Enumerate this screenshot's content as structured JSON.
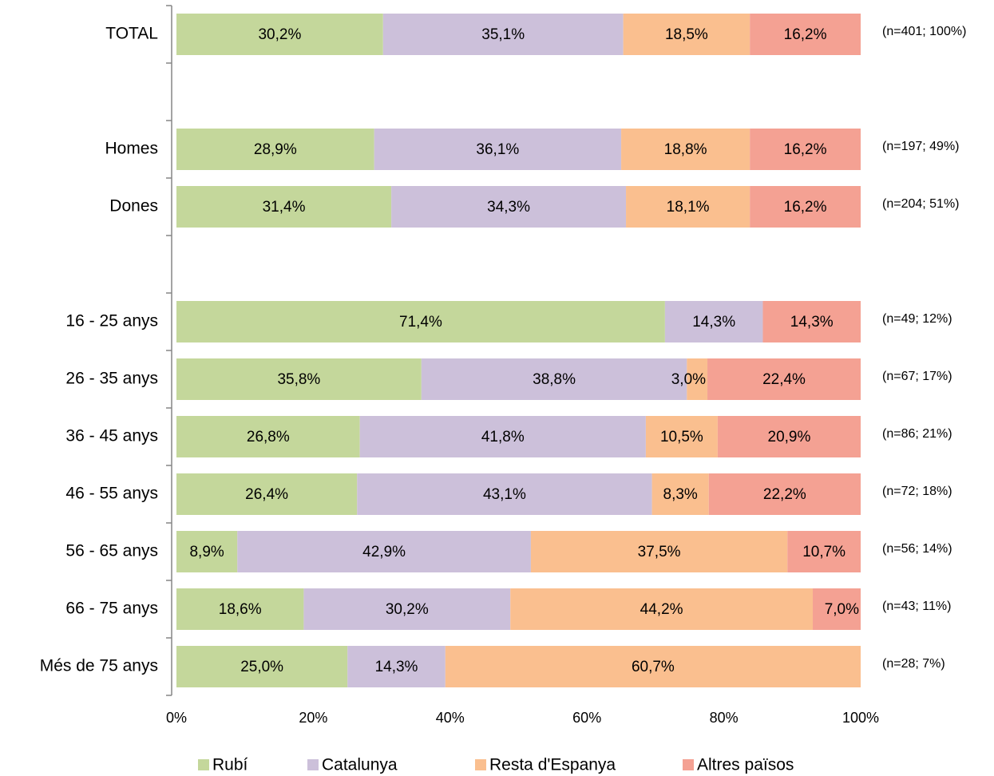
{
  "chart_data": {
    "type": "stacked_barh",
    "categories": [
      "TOTAL",
      null,
      "Homes",
      "Dones",
      null,
      "16 - 25 anys",
      "26 - 35 anys",
      "36 - 45 anys",
      "46 - 55 anys",
      "56 - 65 anys",
      "66 - 75 anys",
      "Més de 75 anys"
    ],
    "annotations": [
      "(n=401; 100%)",
      null,
      "(n=197; 49%)",
      "(n=204; 51%)",
      null,
      "(n=49; 12%)",
      "(n=67; 17%)",
      "(n=86; 21%)",
      "(n=72; 18%)",
      "(n=56; 14%)",
      "(n=43; 11%)",
      "(n=28; 7%)"
    ],
    "series": [
      {
        "name": "Rubí",
        "color": "#c4d79b",
        "values": [
          30.2,
          null,
          28.9,
          31.4,
          null,
          71.4,
          35.8,
          26.8,
          26.4,
          8.9,
          18.6,
          25.0
        ],
        "value_labels": [
          "30,2%",
          null,
          "28,9%",
          "31,4%",
          null,
          "71,4%",
          "35,8%",
          "26,8%",
          "26,4%",
          "8,9%",
          "18,6%",
          "25,0%"
        ]
      },
      {
        "name": "Catalunya",
        "color": "#ccc0da",
        "values": [
          35.1,
          null,
          36.1,
          34.3,
          null,
          14.3,
          38.8,
          41.8,
          43.1,
          42.9,
          30.2,
          14.3
        ],
        "value_labels": [
          "35,1%",
          null,
          "36,1%",
          "34,3%",
          null,
          "14,3%",
          "38,8%",
          "41,8%",
          "43,1%",
          "42,9%",
          "30,2%",
          "14,3%"
        ]
      },
      {
        "name": "Resta d'Espanya",
        "color": "#fabf8f",
        "values": [
          18.5,
          null,
          18.8,
          18.1,
          null,
          0,
          3.0,
          10.5,
          8.3,
          37.5,
          44.2,
          60.7
        ],
        "value_labels": [
          "18,5%",
          null,
          "18,8%",
          "18,1%",
          null,
          null,
          "3,0%",
          "10,5%",
          "8,3%",
          "37,5%",
          "44,2%",
          "60,7%"
        ]
      },
      {
        "name": "Altres països",
        "color": "#f4a193",
        "values": [
          16.2,
          null,
          16.2,
          16.2,
          null,
          14.3,
          22.4,
          20.9,
          22.2,
          10.7,
          7.0,
          0
        ],
        "value_labels": [
          "16,2%",
          null,
          "16,2%",
          "16,2%",
          null,
          "14,3%",
          "22,4%",
          "20,9%",
          "22,2%",
          "10,7%",
          "7,0%",
          null
        ]
      }
    ],
    "xlim": [
      0,
      100
    ],
    "xticks": [
      {
        "value": 0,
        "label": "0%"
      },
      {
        "value": 20,
        "label": "20%"
      },
      {
        "value": 40,
        "label": "40%"
      },
      {
        "value": 60,
        "label": "60%"
      },
      {
        "value": 80,
        "label": "80%"
      },
      {
        "value": 100,
        "label": "100%"
      }
    ],
    "legend": "bottom"
  }
}
